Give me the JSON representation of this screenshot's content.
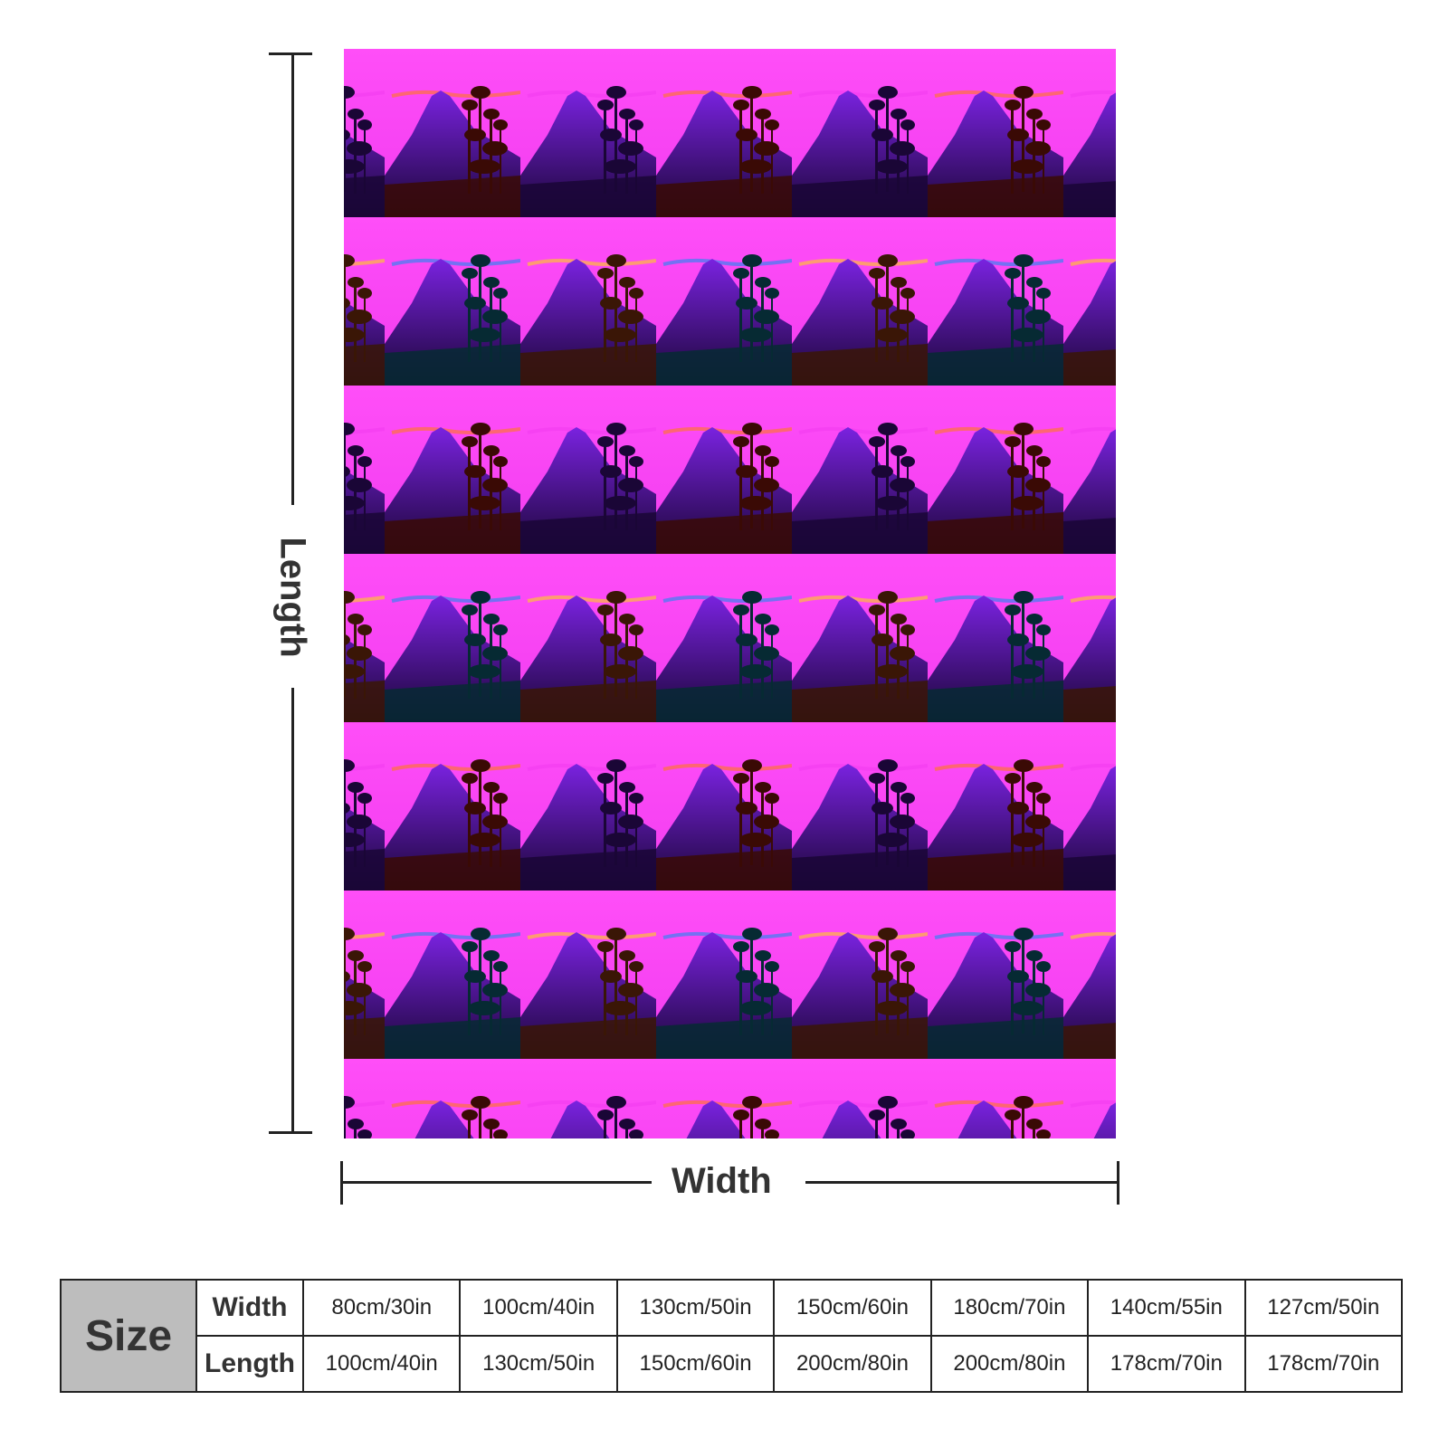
{
  "dimension_labels": {
    "length": "Length",
    "width": "Width"
  },
  "blanket": {
    "pattern": "tiled sunset volcano with trees silhouette, pop-art colour variations",
    "palettes": {
      "orange": {
        "sky": "#ff7a1a",
        "sky_top": "#ff9a2a",
        "mountain": "#e0161b",
        "dark": "#3a0a05"
      },
      "magenta": {
        "sky": "#f23cf0",
        "sky_top": "#ff4ef8",
        "mountain": "#7a22e0",
        "dark": "#1a0636"
      },
      "blue": {
        "sky": "#1a8cf2",
        "sky_top": "#1e7ef0",
        "mountain": "#19c6e0",
        "dark": "#062a33"
      },
      "yellow": {
        "sky": "#ffd21a",
        "sky_top": "#ffe70f",
        "mountain": "#e27a1c",
        "dark": "#3a1606"
      }
    }
  },
  "size_table": {
    "header": "Size",
    "rows": [
      {
        "label": "Width",
        "values": [
          "80cm/30in",
          "100cm/40in",
          "130cm/50in",
          "150cm/60in",
          "180cm/70in",
          "140cm/55in",
          "127cm/50in"
        ]
      },
      {
        "label": "Length",
        "values": [
          "100cm/40in",
          "130cm/50in",
          "150cm/60in",
          "200cm/80in",
          "200cm/80in",
          "178cm/70in",
          "178cm/70in"
        ]
      }
    ]
  }
}
